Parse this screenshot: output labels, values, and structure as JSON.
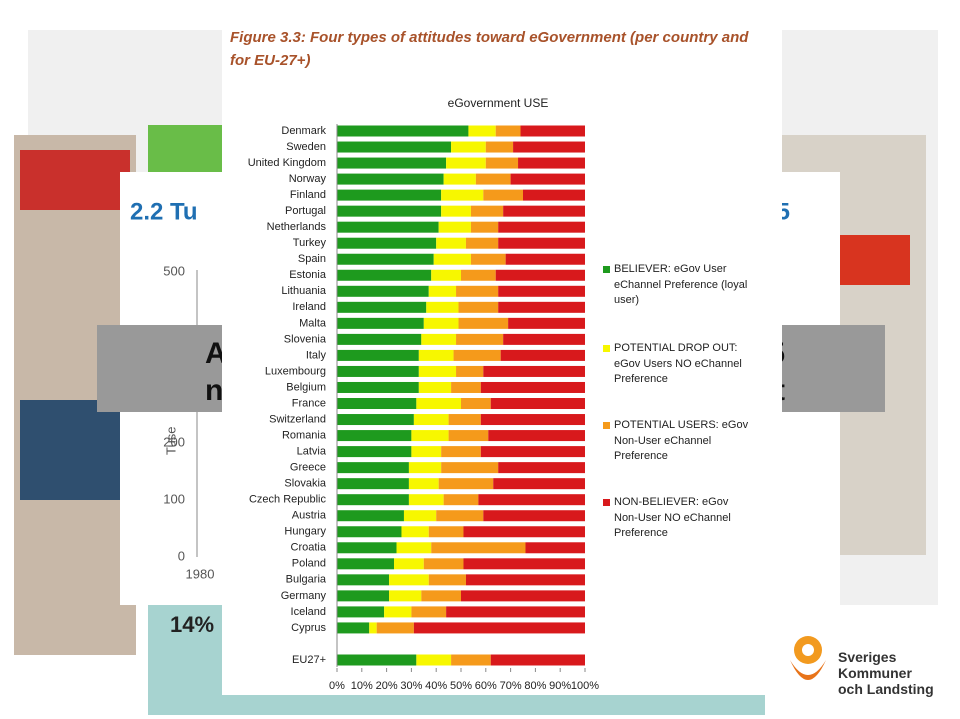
{
  "figure_caption": "Figure 3.3: Four types of attitudes toward eGovernment (per country and for EU-27+)",
  "chart_data": {
    "type": "bar",
    "orientation": "horizontal",
    "stacked": true,
    "title": "eGovernment USE",
    "categories": [
      "Denmark",
      "Sweden",
      "United Kingdom",
      "Norway",
      "Finland",
      "Portugal",
      "Netherlands",
      "Turkey",
      "Spain",
      "Estonia",
      "Lithuania",
      "Ireland",
      "Malta",
      "Slovenia",
      "Italy",
      "Luxembourg",
      "Belgium",
      "France",
      "Switzerland",
      "Romania",
      "Latvia",
      "Greece",
      "Slovakia",
      "Czech Republic",
      "Austria",
      "Hungary",
      "Croatia",
      "Poland",
      "Bulgaria",
      "Germany",
      "Iceland",
      "Cyprus",
      "EU27+"
    ],
    "series": [
      {
        "name": "BELIEVER: eGov User eChannel Preference (loyal user)",
        "color": "#1e9a1e",
        "values": [
          53,
          46,
          44,
          43,
          42,
          42,
          41,
          40,
          39,
          38,
          37,
          36,
          35,
          34,
          33,
          33,
          33,
          32,
          31,
          30,
          30,
          29,
          29,
          29,
          27,
          26,
          24,
          23,
          21,
          21,
          19,
          13,
          32
        ]
      },
      {
        "name": "POTENTIAL DROP OUT: eGov Users NO eChannel Preference",
        "color": "#f7f700",
        "values": [
          11,
          14,
          16,
          13,
          17,
          12,
          13,
          12,
          15,
          12,
          11,
          13,
          14,
          14,
          14,
          15,
          13,
          18,
          14,
          15,
          12,
          13,
          12,
          14,
          13,
          11,
          14,
          12,
          16,
          13,
          11,
          3,
          14
        ]
      },
      {
        "name": "POTENTIAL USERS: eGov Non-User eChannel Preference",
        "color": "#f59a1b",
        "values": [
          10,
          11,
          13,
          14,
          16,
          13,
          11,
          13,
          14,
          14,
          17,
          16,
          20,
          19,
          19,
          11,
          12,
          12,
          13,
          16,
          16,
          23,
          22,
          14,
          19,
          14,
          38,
          16,
          15,
          16,
          14,
          15,
          16
        ]
      },
      {
        "name": "NON-BELIEVER: eGov Non-User NO eChannel Preference",
        "color": "#d8191c",
        "values": [
          26,
          29,
          27,
          30,
          25,
          33,
          35,
          35,
          32,
          36,
          35,
          35,
          31,
          33,
          34,
          41,
          42,
          38,
          42,
          39,
          42,
          35,
          37,
          43,
          41,
          49,
          24,
          49,
          48,
          50,
          56,
          69,
          38
        ]
      }
    ],
    "xlim": [
      0,
      100
    ],
    "xticks": [
      {
        "value": 0,
        "label": "0%"
      },
      {
        "value": 10,
        "label": "10%"
      },
      {
        "value": 20,
        "label": "20%"
      },
      {
        "value": 30,
        "label": "30%"
      },
      {
        "value": 40,
        "label": "40%"
      },
      {
        "value": 50,
        "label": "50%"
      },
      {
        "value": 60,
        "label": "60%"
      },
      {
        "value": 70,
        "label": "70%"
      },
      {
        "value": 80,
        "label": "80%"
      },
      {
        "value": 90,
        "label": "90%"
      },
      {
        "value": 100,
        "label": "100%"
      }
    ],
    "legend": "right"
  },
  "background_slide": {
    "title_left": "2.2 Tu",
    "title_right": "5",
    "y_axis_label": "Tuse",
    "axis_labels": [
      "500",
      "200",
      "100",
      "0",
      "1980",
      "5"
    ],
    "banner": [
      "A",
      "5",
      "n",
      "t"
    ],
    "footnote": "14%"
  },
  "logo": {
    "lines": [
      "Sveriges",
      "Kommuner",
      "och Landsting"
    ]
  }
}
